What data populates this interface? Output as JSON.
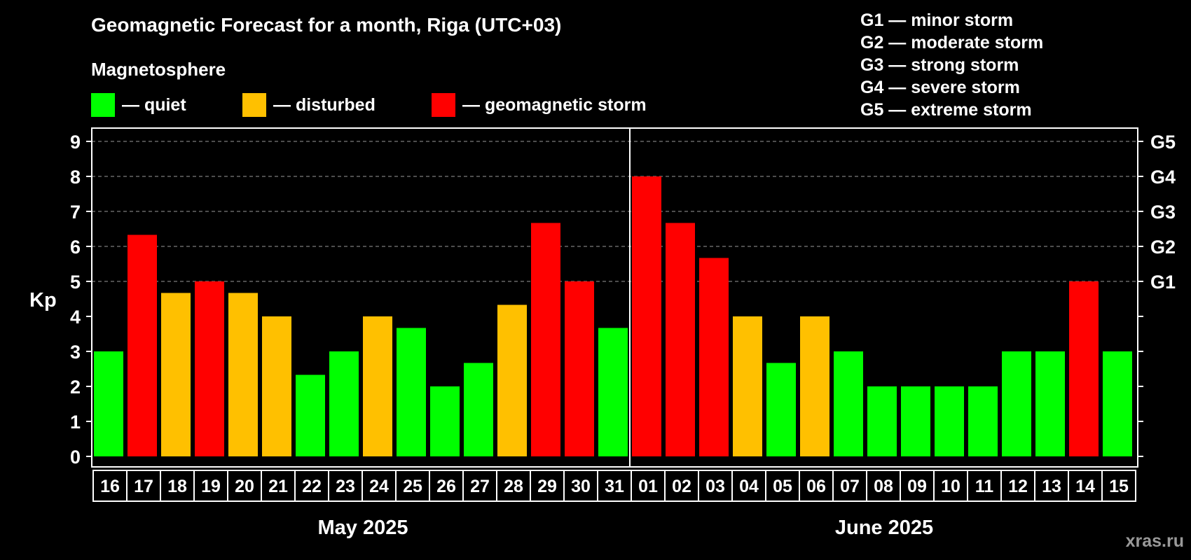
{
  "header": {
    "title": "Geomagnetic Forecast for a month, Riga (UTC+03)",
    "section": "Magnetosphere"
  },
  "legend": [
    {
      "label": "— quiet",
      "color": "#00ff00"
    },
    {
      "label": "— disturbed",
      "color": "#ffc000"
    },
    {
      "label": "— geomagnetic storm",
      "color": "#ff0000"
    }
  ],
  "g_scale": [
    "G1 — minor storm",
    "G2 — moderate storm",
    "G3 — strong storm",
    "G4 — severe storm",
    "G5 — extreme storm"
  ],
  "watermark": "xras.ru",
  "chart_data": {
    "type": "bar",
    "ylabel": "Kp",
    "ylim": [
      0,
      9
    ],
    "yticks": [
      "0",
      "1",
      "2",
      "3",
      "4",
      "5",
      "6",
      "7",
      "8",
      "9"
    ],
    "right_ticks": [
      {
        "value": 5,
        "label": "G1"
      },
      {
        "value": 6,
        "label": "G2"
      },
      {
        "value": 7,
        "label": "G3"
      },
      {
        "value": 8,
        "label": "G4"
      },
      {
        "value": 9,
        "label": "G5"
      }
    ],
    "grid": "dashed horizontal at integer Kp 5-9",
    "categories": [
      "16",
      "17",
      "18",
      "19",
      "20",
      "21",
      "22",
      "23",
      "24",
      "25",
      "26",
      "27",
      "28",
      "29",
      "30",
      "31",
      "01",
      "02",
      "03",
      "04",
      "05",
      "06",
      "07",
      "08",
      "09",
      "10",
      "11",
      "12",
      "13",
      "14",
      "15"
    ],
    "values": [
      3,
      6.33,
      4.67,
      5,
      4.67,
      4,
      2.33,
      3,
      4,
      3.67,
      2,
      2.67,
      4.33,
      6.67,
      5,
      3.67,
      8,
      6.67,
      5.67,
      4,
      2.67,
      4,
      3,
      2,
      2,
      2,
      2,
      3,
      3,
      5,
      3
    ],
    "levels": [
      "quiet",
      "storm",
      "disturbed",
      "storm",
      "disturbed",
      "disturbed",
      "quiet",
      "quiet",
      "disturbed",
      "quiet",
      "quiet",
      "quiet",
      "disturbed",
      "storm",
      "storm",
      "quiet",
      "storm",
      "storm",
      "storm",
      "disturbed",
      "quiet",
      "disturbed",
      "quiet",
      "quiet",
      "quiet",
      "quiet",
      "quiet",
      "quiet",
      "quiet",
      "storm",
      "quiet"
    ],
    "level_colors": {
      "quiet": "#00ff00",
      "disturbed": "#ffc000",
      "storm": "#ff0000"
    },
    "months": [
      {
        "label": "May 2025",
        "count": 16
      },
      {
        "label": "June 2025",
        "count": 15
      }
    ]
  }
}
